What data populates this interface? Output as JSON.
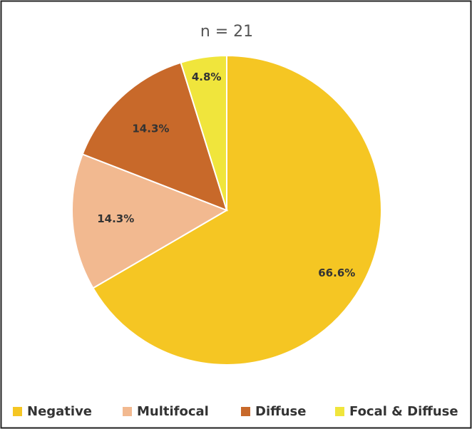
{
  "chart_data": {
    "type": "pie",
    "title": "n = 21",
    "categories": [
      "Negative",
      "Multifocal",
      "Diffuse",
      "Focal & Diffuse"
    ],
    "values": [
      66.6,
      14.3,
      14.3,
      4.8
    ],
    "value_labels": [
      "66.6%",
      "14.3%",
      "14.3%",
      "4.8%"
    ],
    "colors": [
      "#f5c623",
      "#f2b990",
      "#c8692a",
      "#f0e53c"
    ],
    "legend": "bottom"
  }
}
